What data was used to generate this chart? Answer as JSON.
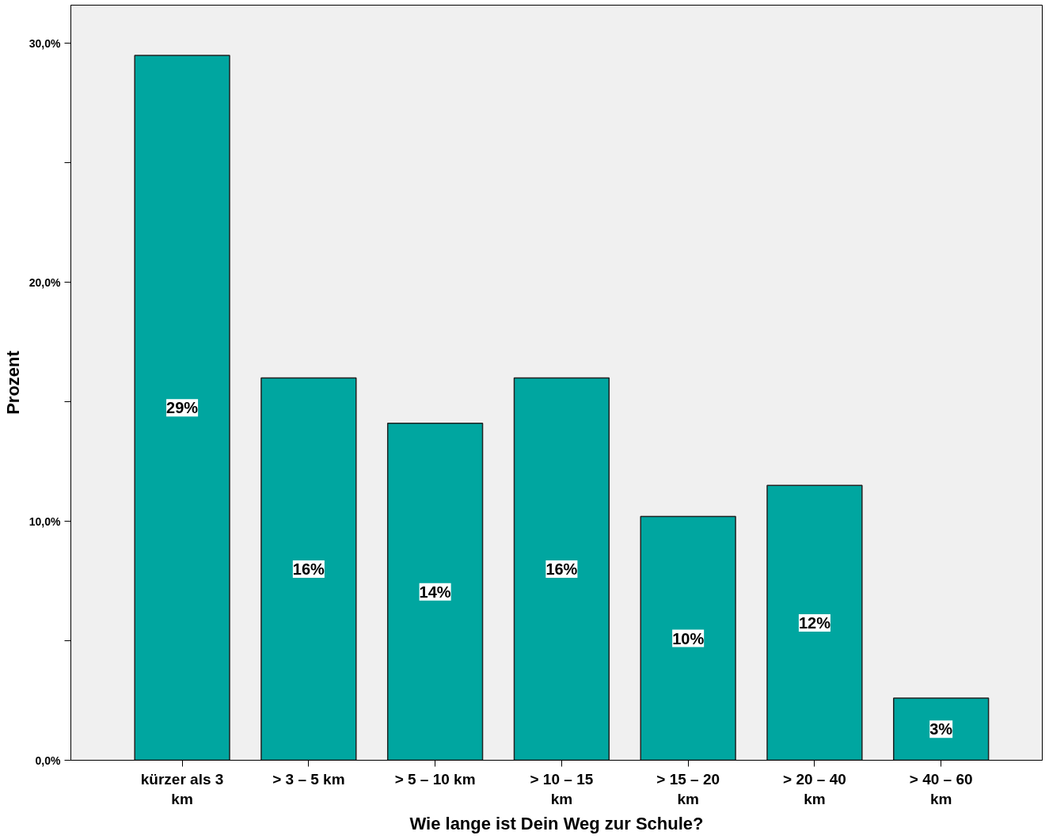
{
  "chart_data": {
    "type": "bar",
    "xlabel": "Wie lange ist Dein Weg zur Schule?",
    "ylabel": "Prozent",
    "categories": [
      "kürzer als 3\nkm",
      "> 3 – 5 km",
      "> 5 – 10 km",
      "> 10 – 15\nkm",
      "> 15 – 20\nkm",
      "> 20 – 40\nkm",
      "> 40 – 60\nkm"
    ],
    "values": [
      29.5,
      16.0,
      14.1,
      16.0,
      10.2,
      11.5,
      2.6
    ],
    "value_labels": [
      "29%",
      "16%",
      "14%",
      "16%",
      "10%",
      "12%",
      "3%"
    ],
    "color": "#00a6a0",
    "ylim": [
      0,
      31.6
    ],
    "yticks": [
      {
        "value": 0,
        "label": "0,0%"
      },
      {
        "value": 5,
        "label": null
      },
      {
        "value": 10,
        "label": "10,0%"
      },
      {
        "value": 15,
        "label": null
      },
      {
        "value": 20,
        "label": "20,0%"
      },
      {
        "value": 25,
        "label": null
      },
      {
        "value": 30,
        "label": "30,0%"
      }
    ],
    "grid": false
  }
}
